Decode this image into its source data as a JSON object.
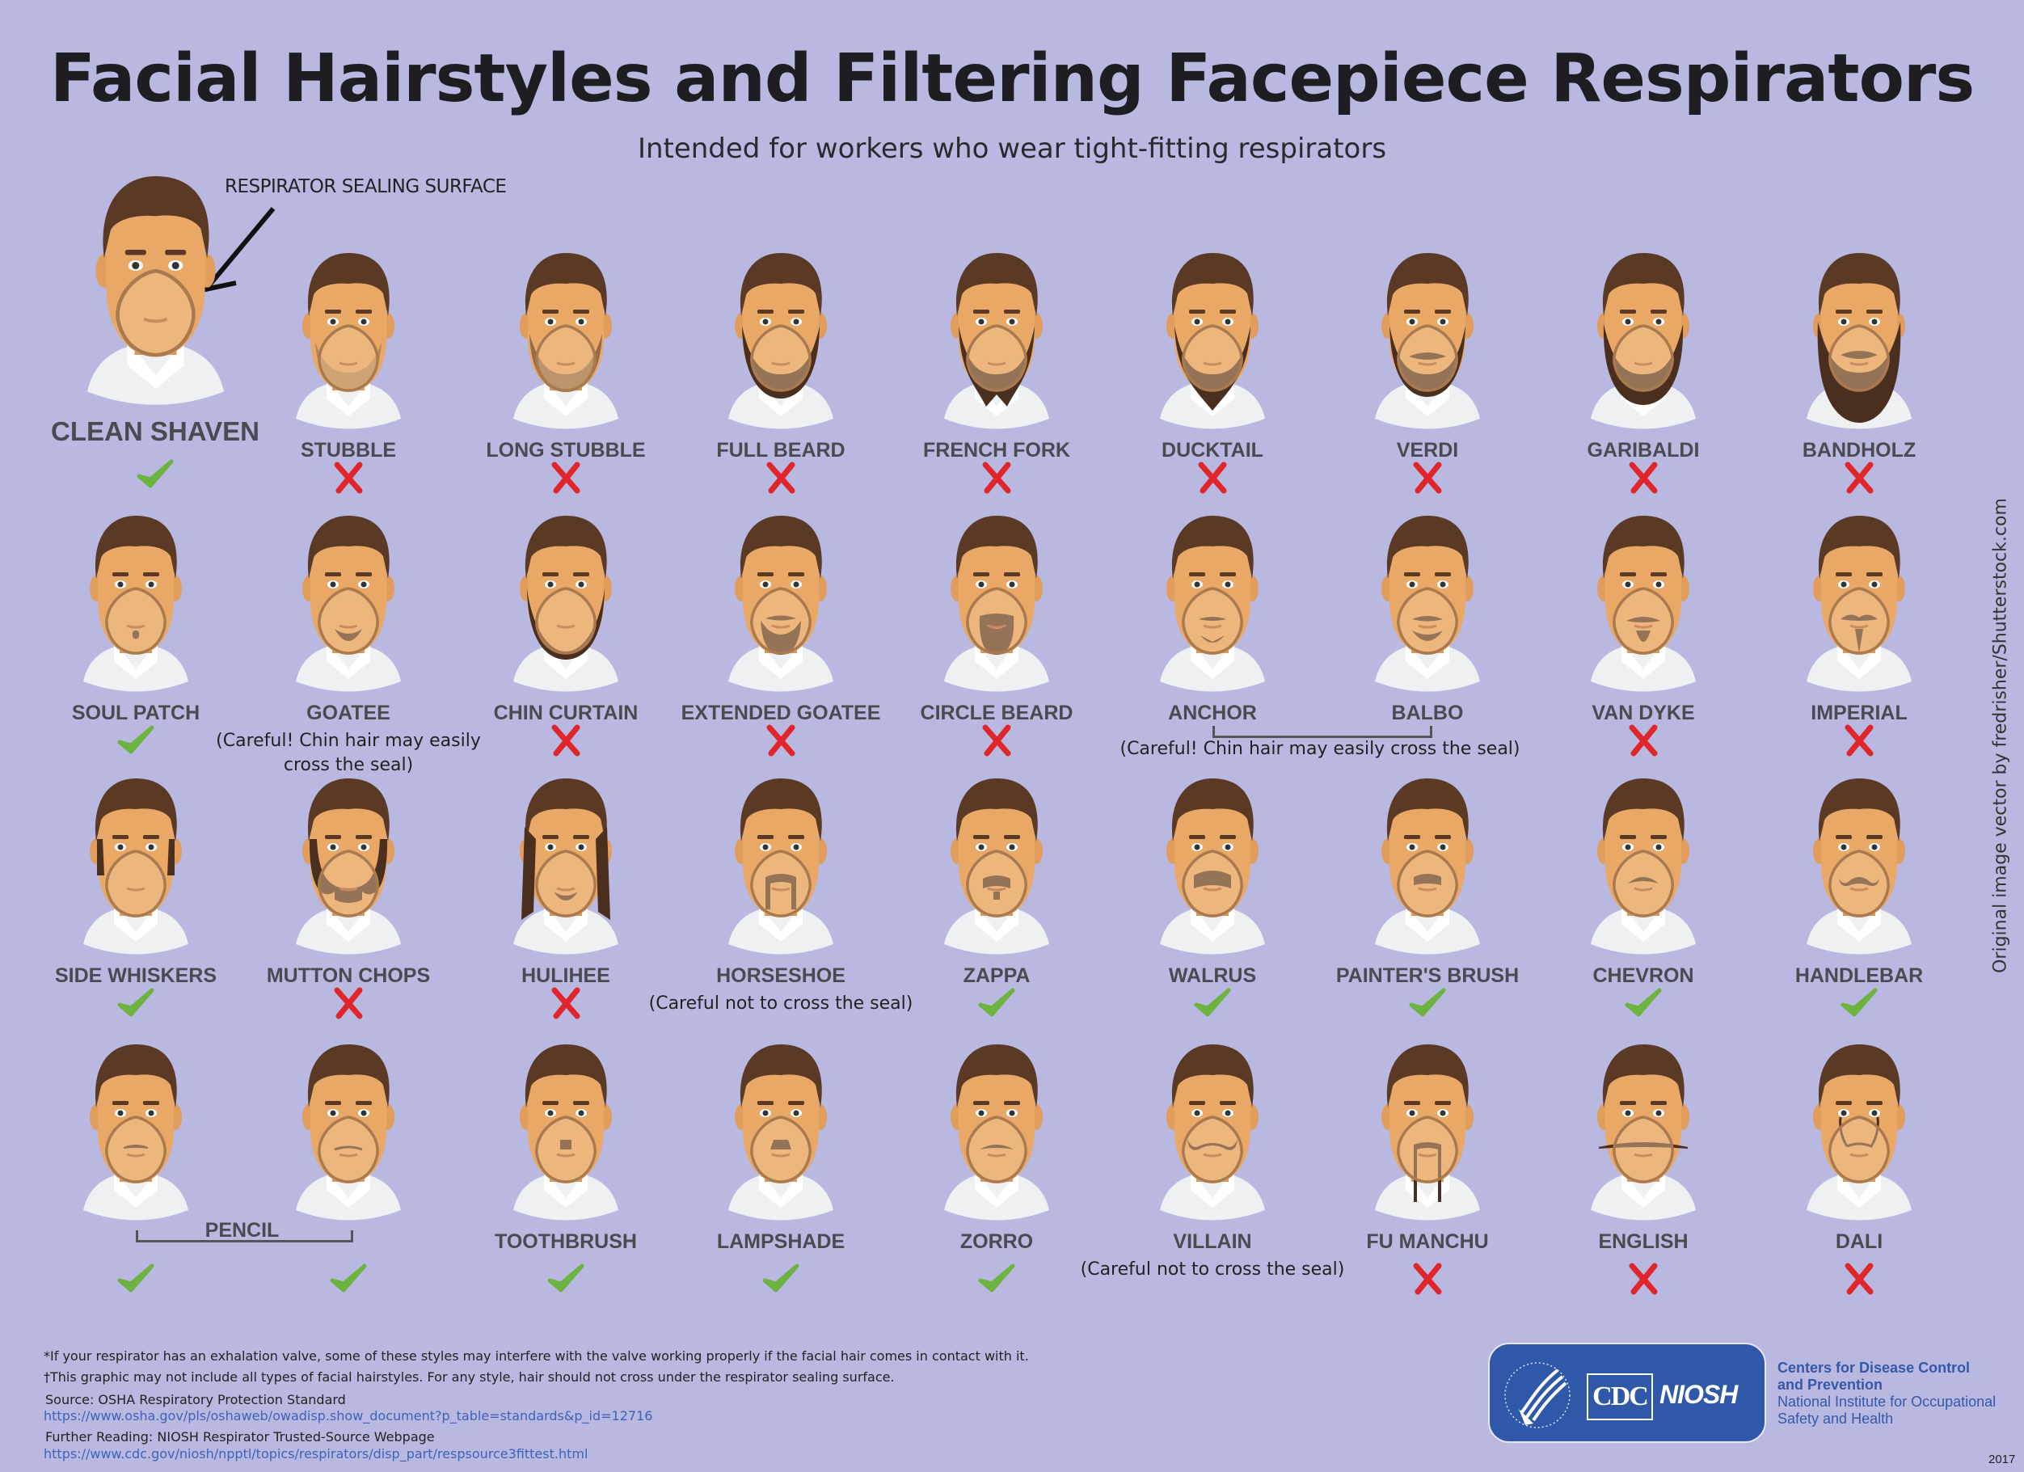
{
  "title": "Facial Hairstyles and Filtering Facepiece Respirators",
  "subtitle": "Intended for workers who wear tight-fitting respirators",
  "sealing_label": "RESPIRATOR SEALING SURFACE",
  "credit": "Original image vector by fredrisher/Shutterstock.com",
  "colors": {
    "background": "#b9b8e1",
    "ok": "#6db33f",
    "no": "#e0262b",
    "skin": "#e9a866",
    "hair": "#5a3a25",
    "logo": "#2f59a8"
  },
  "rows": [
    {
      "items": [
        {
          "label": "CLEAN SHAVEN",
          "ok": true,
          "style": "clean"
        },
        {
          "label": "STUBBLE",
          "ok": false,
          "style": "stubble"
        },
        {
          "label": "LONG STUBBLE",
          "ok": false,
          "style": "longstubble"
        },
        {
          "label": "FULL BEARD",
          "ok": false,
          "style": "fullbeard"
        },
        {
          "label": "FRENCH FORK",
          "ok": false,
          "style": "fork"
        },
        {
          "label": "DUCKTAIL",
          "ok": false,
          "style": "ducktail"
        },
        {
          "label": "VERDI",
          "ok": false,
          "style": "verdi"
        },
        {
          "label": "GARIBALDI",
          "ok": false,
          "style": "garibaldi"
        },
        {
          "label": "BANDHOLZ",
          "ok": false,
          "style": "bandholz"
        }
      ]
    },
    {
      "items": [
        {
          "label": "SOUL PATCH",
          "ok": true,
          "style": "soulpatch"
        },
        {
          "label": "GOATEE",
          "ok": null,
          "style": "goatee",
          "note": "(Careful! Chin hair may easily cross the seal)"
        },
        {
          "label": "CHIN CURTAIN",
          "ok": false,
          "style": "chincurtain"
        },
        {
          "label": "EXTENDED GOATEE",
          "ok": false,
          "style": "extgoatee"
        },
        {
          "label": "CIRCLE BEARD",
          "ok": false,
          "style": "circle"
        },
        {
          "label": "ANCHOR",
          "ok": null,
          "style": "anchor"
        },
        {
          "label": "BALBO",
          "ok": null,
          "style": "balbo"
        },
        {
          "label": "VAN DYKE",
          "ok": false,
          "style": "vandyke"
        },
        {
          "label": "IMPERIAL",
          "ok": false,
          "style": "imperial"
        }
      ],
      "group": {
        "note": "(Careful! Chin hair may easily cross the seal)",
        "from": 5,
        "to": 6
      }
    },
    {
      "items": [
        {
          "label": "SIDE WHISKERS",
          "ok": true,
          "style": "sidewhiskers"
        },
        {
          "label": "MUTTON CHOPS",
          "ok": false,
          "style": "mutton"
        },
        {
          "label": "HULIHEE",
          "ok": false,
          "style": "hulihee"
        },
        {
          "label": "HORSESHOE",
          "ok": null,
          "style": "horseshoe",
          "note": "(Careful not to cross the seal)"
        },
        {
          "label": "ZAPPA",
          "ok": true,
          "style": "zappa"
        },
        {
          "label": "WALRUS",
          "ok": true,
          "style": "walrus"
        },
        {
          "label": "PAINTER'S BRUSH",
          "ok": true,
          "style": "painter"
        },
        {
          "label": "CHEVRON",
          "ok": true,
          "style": "chevron"
        },
        {
          "label": "HANDLEBAR",
          "ok": true,
          "style": "handlebar"
        }
      ]
    },
    {
      "items": [
        {
          "label": "",
          "ok": true,
          "style": "pencil"
        },
        {
          "label": "",
          "ok": true,
          "style": "pencil2"
        },
        {
          "label": "TOOTHBRUSH",
          "ok": true,
          "style": "toothbrush"
        },
        {
          "label": "LAMPSHADE",
          "ok": true,
          "style": "lampshade"
        },
        {
          "label": "ZORRO",
          "ok": true,
          "style": "zorro"
        },
        {
          "label": "VILLAIN",
          "ok": null,
          "style": "villain",
          "note": "(Careful not to cross the seal)"
        },
        {
          "label": "FU MANCHU",
          "ok": false,
          "style": "fumanchu"
        },
        {
          "label": "ENGLISH",
          "ok": false,
          "style": "english"
        },
        {
          "label": "DALI",
          "ok": false,
          "style": "dali"
        }
      ],
      "group": {
        "label": "PENCIL",
        "from": 0,
        "to": 1
      }
    }
  ],
  "footer": {
    "note1": "*If your respirator has an exhalation valve, some of these styles may interfere with the valve working properly if the facial hair comes in contact with it.",
    "note2": "†This graphic may not include all types of facial hairstyles. For any style, hair should not cross under the respirator sealing surface.",
    "source_label": "Source: OSHA Respiratory Protection Standard",
    "source_url": "https://www.osha.gov/pls/oshaweb/owadisp.show_document?p_table=standards&p_id=12716",
    "further_label": "Further Reading: NIOSH Respirator Trusted-Source Webpage",
    "further_url": "https://www.cdc.gov/niosh/npptl/topics/respirators/disp_part/respsource3fittest.html"
  },
  "logo": {
    "cdc": "CDC",
    "niosh": "NIOSH"
  },
  "org": {
    "line1": "Centers for Disease Control",
    "line2": "and Prevention",
    "line3": "National Institute for Occupational",
    "line4": "Safety and Health"
  },
  "year": "2017"
}
